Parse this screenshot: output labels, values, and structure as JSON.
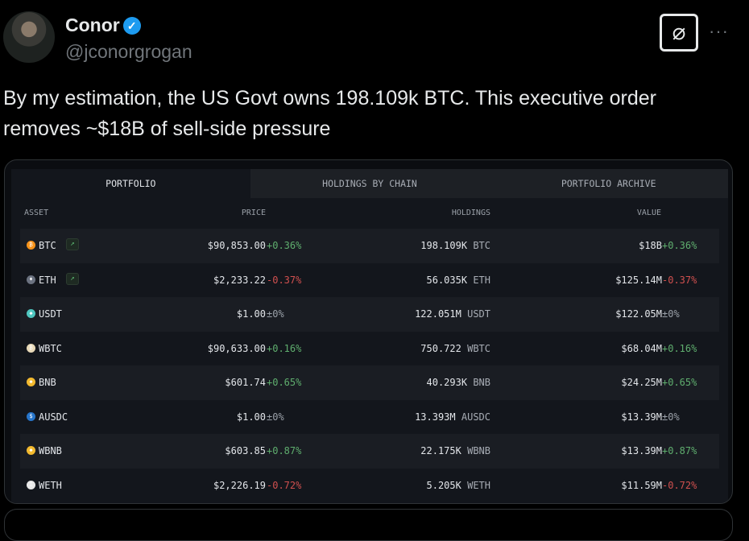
{
  "author": {
    "name": "Conor",
    "handle": "@jconorgrogan",
    "verified_icon": "verified-badge-icon"
  },
  "tweet_text": "By my estimation, the US Govt owns 198.109k BTC. This executive order removes ~$18B of sell-side pressure",
  "tabs": [
    "PORTFOLIO",
    "HOLDINGS BY CHAIN",
    "PORTFOLIO ARCHIVE"
  ],
  "columns": {
    "asset": "ASSET",
    "price": "PRICE",
    "holdings": "HOLDINGS",
    "value": "VALUE"
  },
  "rows": [
    {
      "asset": "BTC",
      "icon": "btc",
      "color": "#f7931a",
      "trend": true,
      "price": "$90,853.00",
      "price_change": "+0.36%",
      "dir": "up",
      "holdings": "198.109K",
      "unit": "BTC",
      "value": "$18B",
      "value_change": "+0.36%"
    },
    {
      "asset": "ETH",
      "icon": "eth",
      "color": "#6b7280",
      "trend": true,
      "price": "$2,233.22",
      "price_change": "-0.37%",
      "dir": "dn",
      "holdings": "56.035K",
      "unit": "ETH",
      "value": "$125.14M",
      "value_change": "-0.37%"
    },
    {
      "asset": "USDT",
      "icon": "usdt",
      "color": "#4fc7c0",
      "trend": false,
      "price": "$1.00",
      "price_change": "±0%",
      "dir": "nt",
      "holdings": "122.051M",
      "unit": "USDT",
      "value": "$122.05M",
      "value_change": "±0%"
    },
    {
      "asset": "WBTC",
      "icon": "wbtc",
      "color": "#e8d9b8",
      "trend": false,
      "price": "$90,633.00",
      "price_change": "+0.16%",
      "dir": "up",
      "holdings": "750.722",
      "unit": "WBTC",
      "value": "$68.04M",
      "value_change": "+0.16%"
    },
    {
      "asset": "BNB",
      "icon": "bnb",
      "color": "#f3ba2f",
      "trend": false,
      "price": "$601.74",
      "price_change": "+0.65%",
      "dir": "up",
      "holdings": "40.293K",
      "unit": "BNB",
      "value": "$24.25M",
      "value_change": "+0.65%"
    },
    {
      "asset": "AUSDC",
      "icon": "ausdc",
      "color": "#2775ca",
      "trend": false,
      "price": "$1.00",
      "price_change": "±0%",
      "dir": "nt",
      "holdings": "13.393M",
      "unit": "AUSDC",
      "value": "$13.39M",
      "value_change": "±0%"
    },
    {
      "asset": "WBNB",
      "icon": "wbnb",
      "color": "#f3ba2f",
      "trend": false,
      "price": "$603.85",
      "price_change": "+0.87%",
      "dir": "up",
      "holdings": "22.175K",
      "unit": "WBNB",
      "value": "$13.39M",
      "value_change": "+0.87%"
    },
    {
      "asset": "WETH",
      "icon": "weth",
      "color": "#e8e8e8",
      "trend": false,
      "price": "$2,226.19",
      "price_change": "-0.72%",
      "dir": "dn",
      "holdings": "5.205K",
      "unit": "WETH",
      "value": "$11.59M",
      "value_change": "-0.72%"
    }
  ]
}
